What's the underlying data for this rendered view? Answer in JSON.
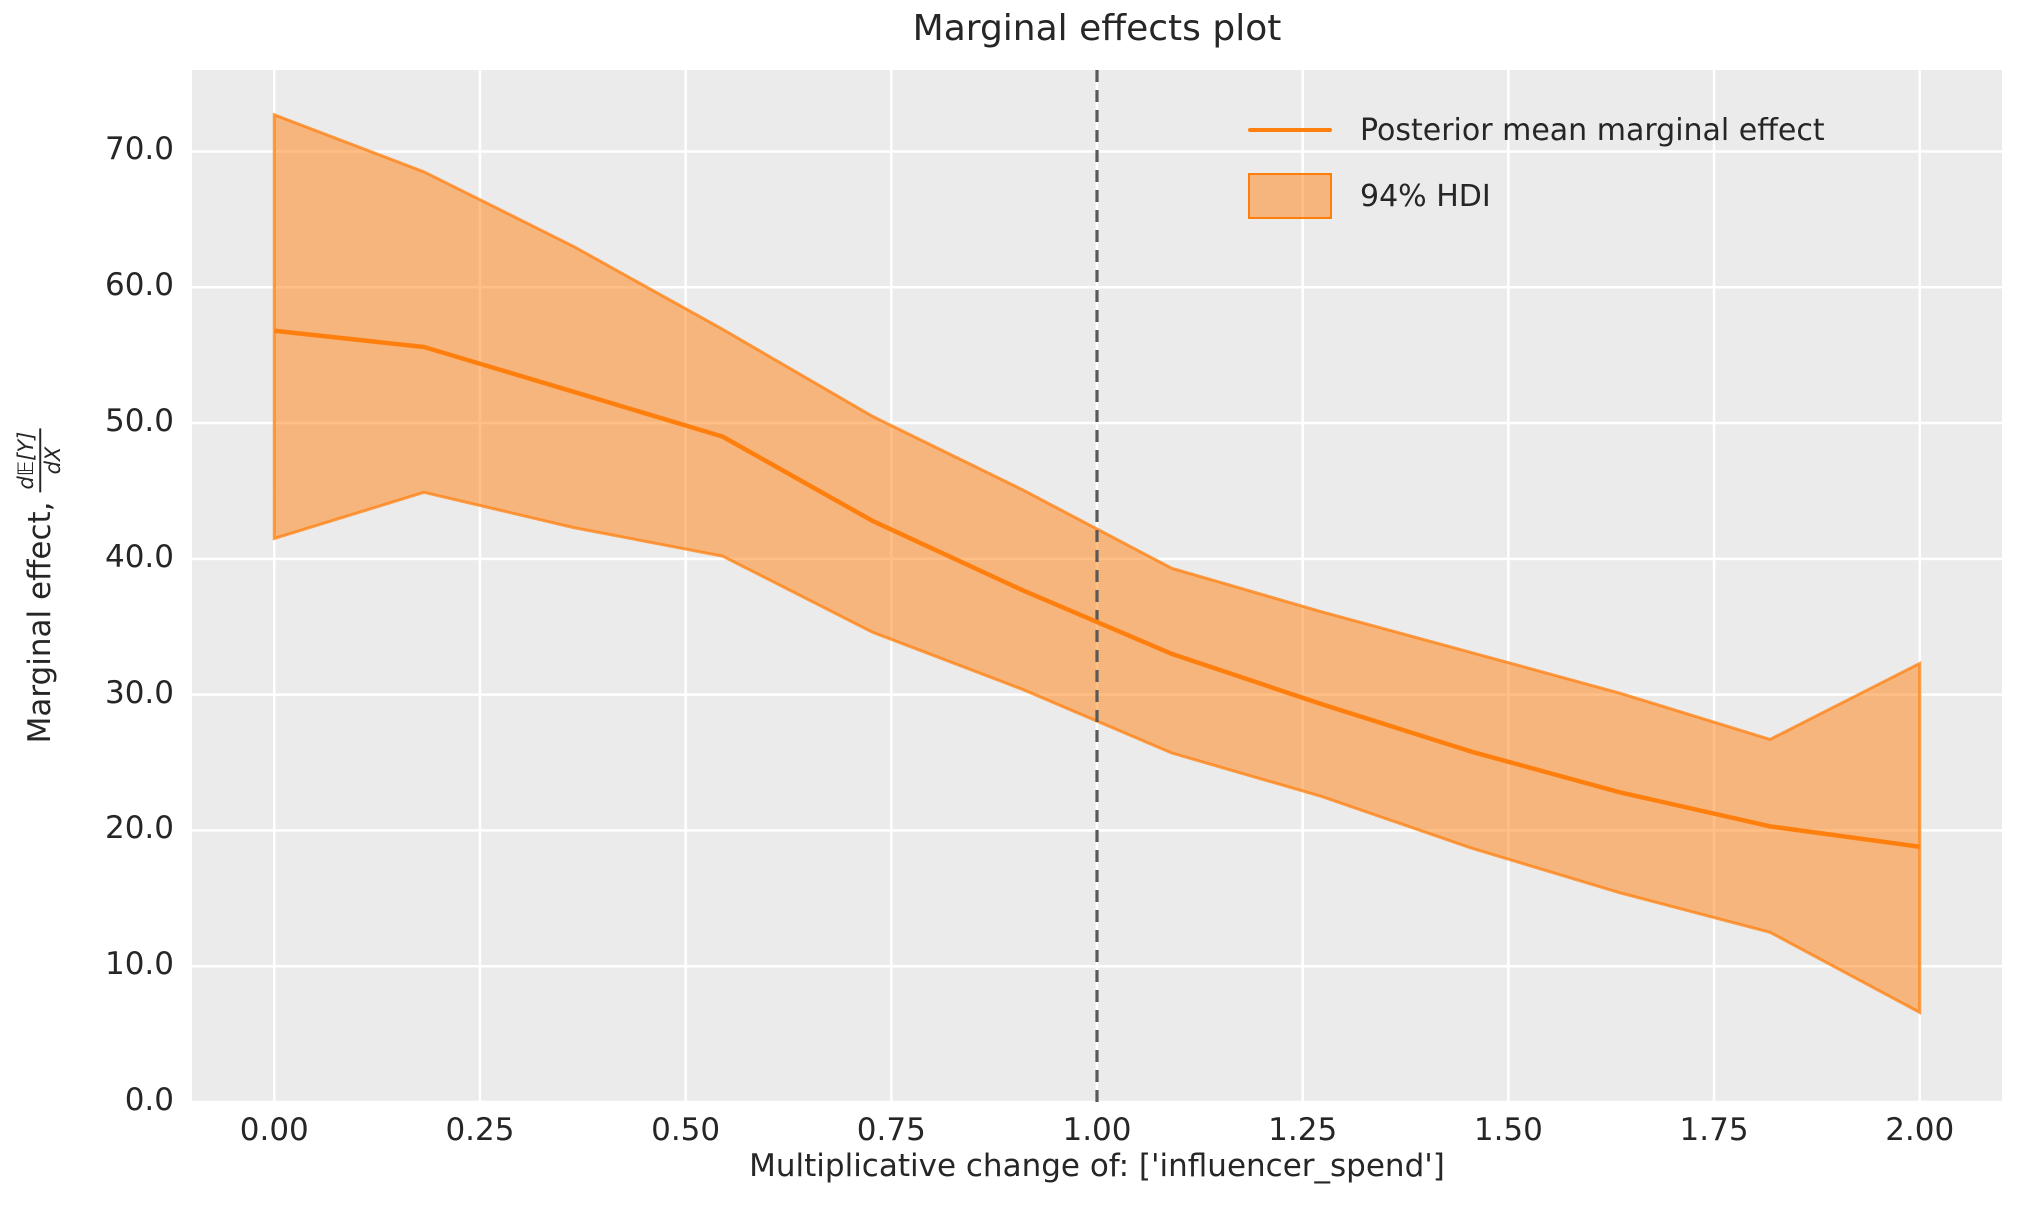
{
  "title": "Marginal effects plot",
  "axes": {
    "x_label": "Multiplicative change of: ['influencer_spend']",
    "y_label_prefix": "Marginal effect,",
    "y_label_frac_num": "d𝔼[Y]",
    "y_label_frac_den": "dX",
    "x_ticks": [
      "0.00",
      "0.25",
      "0.50",
      "0.75",
      "1.00",
      "1.25",
      "1.50",
      "1.75",
      "2.00"
    ],
    "y_ticks": [
      "0.0",
      "10.0",
      "20.0",
      "30.0",
      "40.0",
      "50.0",
      "60.0",
      "70.0"
    ]
  },
  "legend": {
    "items": [
      {
        "type": "line",
        "label": "Posterior mean marginal effect"
      },
      {
        "type": "patch",
        "label": "94% HDI"
      }
    ]
  },
  "colors": {
    "accent_orange": "#ff7f0e",
    "band_fill": "rgba(255,127,14,0.5)",
    "band_edge": "rgba(255,127,14,0.75)",
    "reference_line": "#595959",
    "plot_background": "#ebebeb",
    "gridline": "#ffffff",
    "text": "#262626"
  },
  "chart_data": {
    "type": "line",
    "title": "Marginal effects plot",
    "xlabel": "Multiplicative change of: ['influencer_spend']",
    "ylabel": "Marginal effect, d𝔼[Y]/dX",
    "grid": true,
    "legend_position": "upper right",
    "xlim": [
      -0.1,
      2.1
    ],
    "ylim": [
      0,
      76
    ],
    "x_tick_values": [
      0.0,
      0.25,
      0.5,
      0.75,
      1.0,
      1.25,
      1.5,
      1.75,
      2.0
    ],
    "y_tick_values": [
      0,
      10,
      20,
      30,
      40,
      50,
      60,
      70
    ],
    "reference_line_x": 1.0,
    "x": [
      0.0,
      0.182,
      0.364,
      0.545,
      0.727,
      0.909,
      1.091,
      1.273,
      1.455,
      1.636,
      1.818,
      2.0
    ],
    "series": [
      {
        "name": "Posterior mean marginal effect",
        "values": [
          56.8,
          55.6,
          52.3,
          49.0,
          42.8,
          37.7,
          33.0,
          29.3,
          25.8,
          22.8,
          20.3,
          18.8
        ]
      },
      {
        "name": "94% HDI upper bound",
        "values": [
          72.7,
          68.5,
          63.0,
          56.9,
          50.5,
          45.1,
          39.3,
          36.1,
          33.1,
          30.1,
          26.7,
          32.3
        ]
      },
      {
        "name": "94% HDI lower bound",
        "values": [
          41.5,
          44.9,
          42.3,
          40.2,
          34.6,
          30.4,
          25.7,
          22.5,
          18.7,
          15.4,
          12.5,
          6.6
        ]
      }
    ]
  }
}
